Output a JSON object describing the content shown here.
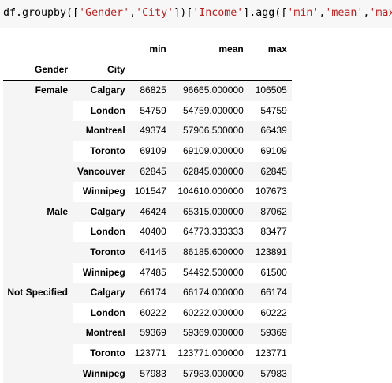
{
  "code": {
    "tokens": [
      {
        "text": "df.groupby([",
        "kind": "default"
      },
      {
        "text": "'Gender'",
        "kind": "str"
      },
      {
        "text": ",",
        "kind": "default"
      },
      {
        "text": "'City'",
        "kind": "str"
      },
      {
        "text": "])[",
        "kind": "default"
      },
      {
        "text": "'Income'",
        "kind": "str"
      },
      {
        "text": "].agg([",
        "kind": "default"
      },
      {
        "text": "'min'",
        "kind": "str"
      },
      {
        "text": ",",
        "kind": "default"
      },
      {
        "text": "'mean'",
        "kind": "str"
      },
      {
        "text": ",",
        "kind": "default"
      },
      {
        "text": "'max'",
        "kind": "str"
      },
      {
        "text": "])",
        "kind": "default"
      }
    ]
  },
  "table": {
    "columns": [
      "min",
      "mean",
      "max"
    ],
    "index_names": [
      "Gender",
      "City"
    ],
    "groups": [
      {
        "gender": "Female",
        "rows": [
          {
            "city": "Calgary",
            "min": "86825",
            "mean": "96665.000000",
            "max": "106505"
          },
          {
            "city": "London",
            "min": "54759",
            "mean": "54759.000000",
            "max": "54759"
          },
          {
            "city": "Montreal",
            "min": "49374",
            "mean": "57906.500000",
            "max": "66439"
          },
          {
            "city": "Toronto",
            "min": "69109",
            "mean": "69109.000000",
            "max": "69109"
          },
          {
            "city": "Vancouver",
            "min": "62845",
            "mean": "62845.000000",
            "max": "62845"
          },
          {
            "city": "Winnipeg",
            "min": "101547",
            "mean": "104610.000000",
            "max": "107673"
          }
        ]
      },
      {
        "gender": "Male",
        "rows": [
          {
            "city": "Calgary",
            "min": "46424",
            "mean": "65315.000000",
            "max": "87062"
          },
          {
            "city": "London",
            "min": "40400",
            "mean": "64773.333333",
            "max": "83477"
          },
          {
            "city": "Toronto",
            "min": "64145",
            "mean": "86185.600000",
            "max": "123891"
          },
          {
            "city": "Winnipeg",
            "min": "47485",
            "mean": "54492.500000",
            "max": "61500"
          }
        ]
      },
      {
        "gender": "Not Specified",
        "rows": [
          {
            "city": "Calgary",
            "min": "66174",
            "mean": "66174.000000",
            "max": "66174"
          },
          {
            "city": "London",
            "min": "60222",
            "mean": "60222.000000",
            "max": "60222"
          },
          {
            "city": "Montreal",
            "min": "59369",
            "mean": "59369.000000",
            "max": "59369"
          },
          {
            "city": "Toronto",
            "min": "123771",
            "mean": "123771.000000",
            "max": "123771"
          },
          {
            "city": "Winnipeg",
            "min": "57983",
            "mean": "57983.000000",
            "max": "57983"
          }
        ]
      }
    ]
  }
}
